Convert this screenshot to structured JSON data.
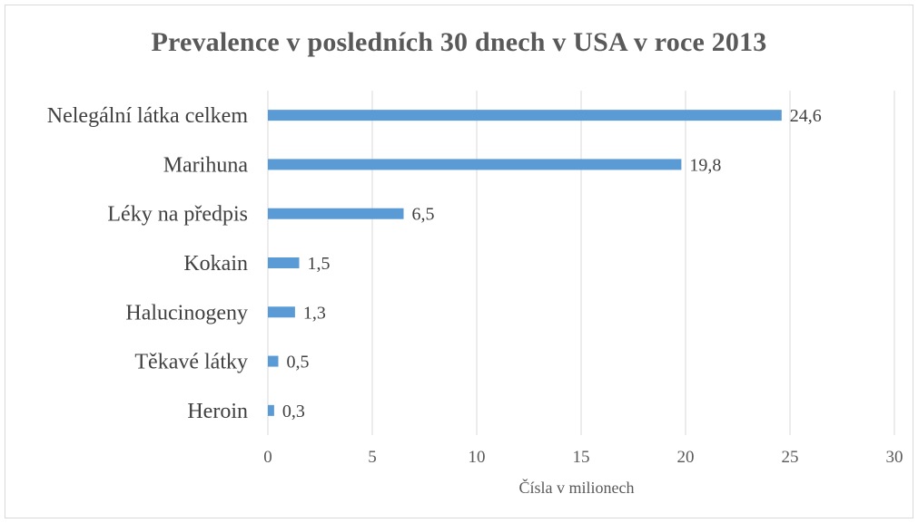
{
  "chart_data": {
    "type": "bar",
    "orientation": "horizontal",
    "title": "Prevalence v posledních 30 dnech v USA v roce 2013",
    "xlabel": "Čísla v milionech",
    "ylabel": "",
    "categories": [
      "Nelegální látka celkem",
      "Marihuna",
      "Léky na předpis",
      "Kokain",
      "Halucinogeny",
      "Těkavé látky",
      "Heroin"
    ],
    "values": [
      24.6,
      19.8,
      6.5,
      1.5,
      1.3,
      0.5,
      0.3
    ],
    "data_labels": [
      "24,6",
      "19,8",
      "6,5",
      "1,5",
      "1,3",
      "0,5",
      "0,3"
    ],
    "xlim": [
      0,
      30
    ],
    "xticks": [
      0,
      5,
      10,
      15,
      20,
      25,
      30
    ],
    "xtick_labels": [
      "0",
      "5",
      "10",
      "15",
      "20",
      "25",
      "30"
    ],
    "grid": "vertical",
    "legend": "none",
    "bar_color": "#5b9bd5",
    "grid_color": "#d9d9d9"
  }
}
